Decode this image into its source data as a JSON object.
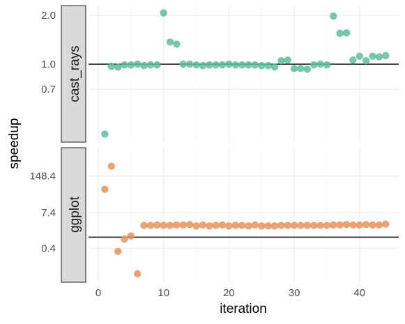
{
  "chart_data": {
    "type": "scatter",
    "xlabel": "iteration",
    "ylabel": "speedup",
    "x_ticks": [
      0,
      10,
      20,
      30,
      40
    ],
    "xlim": [
      -1.5,
      46
    ],
    "panels": [
      {
        "strip_label": "cast_rays",
        "color": "#5DBE99",
        "scale": "log",
        "ylim": [
          0.33,
          2.3
        ],
        "y_ticks": [
          2.0,
          1.0,
          0.7
        ],
        "y_tick_labels": [
          "2.0",
          "1.0",
          "0.7"
        ],
        "reference_line": 1.0,
        "x": [
          1,
          2,
          3,
          4,
          5,
          6,
          7,
          8,
          9,
          10,
          11,
          12,
          13,
          14,
          15,
          16,
          17,
          18,
          19,
          20,
          21,
          22,
          23,
          24,
          25,
          26,
          27,
          28,
          29,
          30,
          31,
          32,
          33,
          34,
          35,
          36,
          37,
          38,
          39,
          40,
          41,
          42,
          43,
          44
        ],
        "y": [
          0.37,
          0.97,
          0.96,
          0.99,
          0.99,
          1.0,
          0.98,
          0.99,
          0.99,
          2.07,
          1.37,
          1.33,
          1.0,
          1.0,
          0.99,
          0.98,
          0.99,
          0.99,
          0.99,
          1.0,
          0.99,
          0.99,
          0.99,
          0.99,
          0.98,
          0.98,
          0.96,
          1.05,
          1.06,
          0.94,
          0.94,
          0.93,
          0.99,
          1.0,
          0.99,
          1.98,
          1.55,
          1.56,
          1.06,
          1.12,
          1.05,
          1.12,
          1.11,
          1.13
        ]
      },
      {
        "strip_label": "ggplot",
        "color": "#E8935B",
        "scale": "log",
        "ylim": [
          0.025,
          1500
        ],
        "y_ticks": [
          148.4,
          7.4,
          0.4
        ],
        "y_tick_labels": [
          "148.4",
          "7.4",
          "0.4"
        ],
        "reference_line": 1.0,
        "x": [
          1,
          2,
          3,
          4,
          5,
          6,
          7,
          8,
          9,
          10,
          11,
          12,
          13,
          14,
          15,
          16,
          17,
          18,
          19,
          20,
          21,
          22,
          23,
          24,
          25,
          26,
          27,
          28,
          29,
          30,
          31,
          32,
          33,
          34,
          35,
          36,
          37,
          38,
          39,
          40,
          41,
          42,
          43,
          44
        ],
        "y": [
          50,
          330,
          0.31,
          0.85,
          1.1,
          0.05,
          2.6,
          2.6,
          2.7,
          2.6,
          2.6,
          2.7,
          2.7,
          2.8,
          2.5,
          2.7,
          2.5,
          2.6,
          2.7,
          2.5,
          2.6,
          2.6,
          2.5,
          2.7,
          2.5,
          2.5,
          2.5,
          2.6,
          2.6,
          2.6,
          2.6,
          2.6,
          2.6,
          2.6,
          2.6,
          2.7,
          2.7,
          2.8,
          2.7,
          2.7,
          2.8,
          2.7,
          2.7,
          2.9
        ]
      }
    ]
  }
}
